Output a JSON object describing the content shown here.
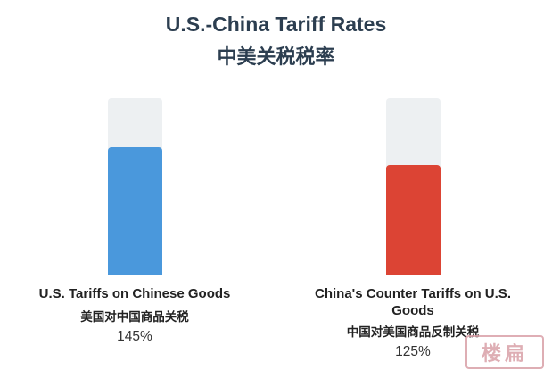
{
  "title": "U.S.-China Tariff Rates",
  "subtitle": "中美关税税率",
  "chart_data": {
    "type": "bar",
    "title": "U.S.-China Tariff Rates",
    "subtitle": "中美关税税率",
    "ylim": [
      0,
      200
    ],
    "grid": false,
    "legend": "none",
    "categories": [
      "U.S. Tariffs on Chinese Goods",
      "China's Counter Tariffs on U.S. Goods"
    ],
    "categories_cn": [
      "美国对中国商品关税",
      "中国对美国商品反制关税"
    ],
    "values": [
      145,
      125
    ],
    "value_labels": [
      "145%",
      "125%"
    ],
    "colors": [
      "#4a98dc",
      "#dc4434"
    ],
    "track_color": "#edf0f2"
  },
  "watermark": "楼扁"
}
